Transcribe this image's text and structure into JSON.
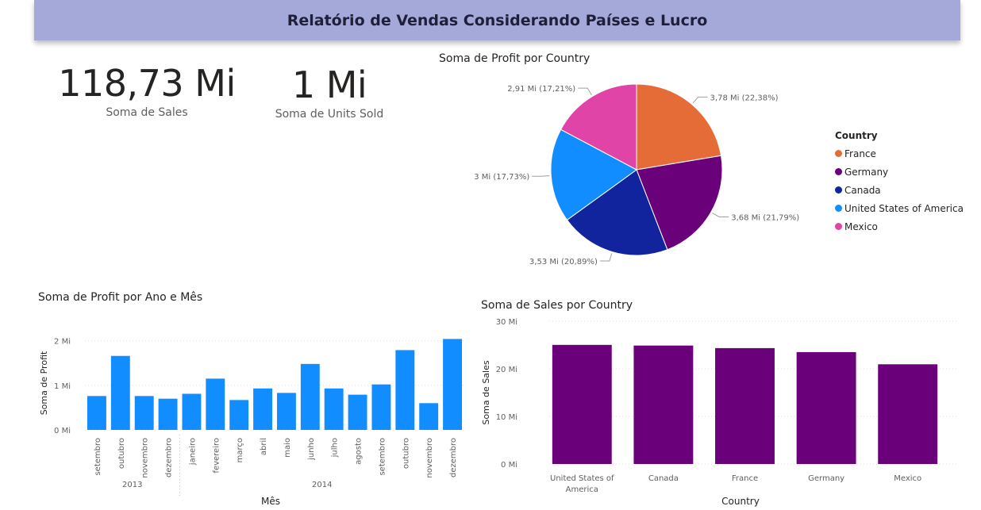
{
  "header": {
    "title": "Relatório de Vendas Considerando Países e Lucro"
  },
  "kpis": [
    {
      "value": "118,73 Mi",
      "label": "Soma de  Sales"
    },
    {
      "value": "1 Mi",
      "label": "Soma de Units Sold"
    }
  ],
  "colors": {
    "France": "#e66c37",
    "Germany": "#6b007b",
    "Canada": "#12239e",
    "United States of America": "#118dff",
    "Mexico": "#e044a7",
    "bar_blue": "#118dff",
    "bar_purple": "#6b007b"
  },
  "chart_data": [
    {
      "type": "pie",
      "title": "Soma de Profit por Country",
      "legend_title": "Country",
      "legend_position": "right",
      "slices": [
        {
          "name": "France",
          "value": 3.78,
          "percent": 22.38,
          "label": "3,78 Mi (22,38%)"
        },
        {
          "name": "Germany",
          "value": 3.68,
          "percent": 21.79,
          "label": "3,68 Mi (21,79%)"
        },
        {
          "name": "Canada",
          "value": 3.53,
          "percent": 20.89,
          "label": "3,53 Mi (20,89%)"
        },
        {
          "name": "United States of America",
          "value": 3.0,
          "percent": 17.73,
          "label": "3 Mi (17,73%)"
        },
        {
          "name": "Mexico",
          "value": 2.91,
          "percent": 17.21,
          "label": "2,91 Mi (17,21%)"
        }
      ]
    },
    {
      "type": "bar",
      "title": "Soma de Profit por Ano e Mês",
      "xlabel": "Mês",
      "ylabel": "Soma de Profit",
      "ylim": [
        0,
        2.1
      ],
      "yticks": [
        {
          "value": 0,
          "label": "0 Mi"
        },
        {
          "value": 1,
          "label": "1 Mi"
        },
        {
          "value": 2,
          "label": "2 Mi"
        }
      ],
      "groups": [
        {
          "label": "2013",
          "count": 4
        },
        {
          "label": "2014",
          "count": 12
        }
      ],
      "categories": [
        "setembro",
        "outubro",
        "novembro",
        "dezembro",
        "janeiro",
        "fevereiro",
        "março",
        "abril",
        "maio",
        "junho",
        "julho",
        "agosto",
        "setembro",
        "outubro",
        "novembro",
        "dezembro"
      ],
      "values": [
        0.76,
        1.66,
        0.76,
        0.7,
        0.81,
        1.15,
        0.67,
        0.93,
        0.83,
        1.48,
        0.93,
        0.79,
        1.02,
        1.79,
        0.6,
        2.04
      ],
      "grid": true
    },
    {
      "type": "bar",
      "title": "Soma de Sales por Country",
      "xlabel": "Country",
      "ylabel": "Soma de Sales",
      "ylim": [
        0,
        30
      ],
      "yticks": [
        {
          "value": 0,
          "label": "0 Mi"
        },
        {
          "value": 10,
          "label": "10 Mi"
        },
        {
          "value": 20,
          "label": "20 Mi"
        },
        {
          "value": 30,
          "label": "30 Mi"
        }
      ],
      "categories": [
        [
          "United States of",
          "America"
        ],
        [
          "Canada"
        ],
        [
          "France"
        ],
        [
          "Germany"
        ],
        [
          "Mexico"
        ]
      ],
      "values": [
        25.03,
        24.89,
        24.35,
        23.51,
        20.95
      ],
      "grid": true
    }
  ]
}
